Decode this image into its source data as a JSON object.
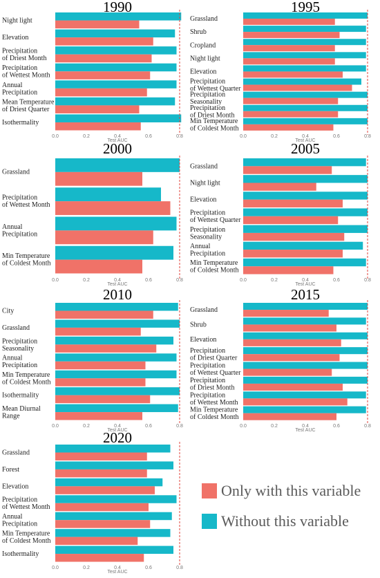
{
  "colors": {
    "only": "#F07268",
    "without": "#16B8C9",
    "ref_line": "#E0403A"
  },
  "legend": {
    "only_label": "Only with this variable",
    "without_label": "Without this variable"
  },
  "chart_data": [
    {
      "type": "bar",
      "orientation": "horizontal",
      "title": "1990",
      "xlabel": "Test AUC",
      "xlim": [
        0,
        0.8
      ],
      "ticks": [
        "0.0",
        "0.2",
        "0.4",
        "0.6",
        "0.8"
      ],
      "reference_line": 0.8,
      "categories": [
        "Night light",
        "Elevation",
        "Precipitation\nof Driest Month",
        "Precipitation\nof Wettest Month",
        "Annual\nPrecipitation",
        "Mean Temperature\nof Driest Quarter",
        "Isothermality"
      ],
      "series": [
        {
          "name": "Without this variable",
          "values": [
            0.81,
            0.77,
            0.78,
            0.78,
            0.78,
            0.77,
            0.81
          ]
        },
        {
          "name": "Only with this variable",
          "values": [
            0.54,
            0.63,
            0.62,
            0.61,
            0.59,
            0.54,
            0.55
          ]
        }
      ]
    },
    {
      "type": "bar",
      "orientation": "horizontal",
      "title": "1995",
      "xlabel": "Test AUC",
      "xlim": [
        0,
        0.8
      ],
      "ticks": [
        "0.0",
        "0.2",
        "0.4",
        "0.6",
        "0.8"
      ],
      "reference_line": 0.8,
      "categories": [
        "Grassland",
        "Shrub",
        "Cropland",
        "Night light",
        "Elevation",
        "Precipitation\nof Wettest Quarter",
        "Precipitation\nSeasonality",
        "Precipitation\nof Driest Month",
        "Min Temperature\nof Coldest Month"
      ],
      "series": [
        {
          "name": "Without this variable",
          "values": [
            0.8,
            0.79,
            0.79,
            0.79,
            0.79,
            0.76,
            0.8,
            0.8,
            0.8
          ]
        },
        {
          "name": "Only with this variable",
          "values": [
            0.59,
            0.62,
            0.59,
            0.59,
            0.64,
            0.7,
            0.61,
            0.61,
            0.58
          ]
        }
      ]
    },
    {
      "type": "bar",
      "orientation": "horizontal",
      "title": "2000",
      "xlabel": "Test AUC",
      "xlim": [
        0,
        0.8
      ],
      "ticks": [
        "0.0",
        "0.2",
        "0.4",
        "0.6",
        "0.8"
      ],
      "reference_line": 0.8,
      "categories": [
        "Grassland",
        "Precipitation\nof Wettest Month",
        "Annual\nPrecipitation",
        "Min Temperature\nof Coldest Month"
      ],
      "series": [
        {
          "name": "Without this variable",
          "values": [
            0.8,
            0.68,
            0.78,
            0.76
          ]
        },
        {
          "name": "Only with this variable",
          "values": [
            0.56,
            0.74,
            0.63,
            0.56
          ]
        }
      ]
    },
    {
      "type": "bar",
      "orientation": "horizontal",
      "title": "2005",
      "xlabel": "Test AUC",
      "xlim": [
        0,
        0.8
      ],
      "ticks": [
        "0.0",
        "0.2",
        "0.4",
        "0.6",
        "0.8"
      ],
      "reference_line": 0.8,
      "categories": [
        "Grassland",
        "Night light",
        "Elevation",
        "Precipitation\nof Wettest Quarter",
        "Precipitation\nSeasonality",
        "Annual\nPrecipitation",
        "Min Temperature\nof Coldest Month"
      ],
      "series": [
        {
          "name": "Without this variable",
          "values": [
            0.79,
            0.8,
            0.8,
            0.8,
            0.8,
            0.77,
            0.79
          ]
        },
        {
          "name": "Only with this variable",
          "values": [
            0.57,
            0.47,
            0.64,
            0.61,
            0.65,
            0.64,
            0.58
          ]
        }
      ]
    },
    {
      "type": "bar",
      "orientation": "horizontal",
      "title": "2010",
      "xlabel": "Test AUC",
      "xlim": [
        0,
        0.8
      ],
      "ticks": [
        "0.0",
        "0.2",
        "0.4",
        "0.6",
        "0.8"
      ],
      "reference_line": 0.8,
      "categories": [
        "City",
        "Grassland",
        "Precipitation\nSeasonality",
        "Annual\nPrecipitation",
        "Min Temperature\nof Coldest Month",
        "Isothermality",
        "Mean Diurnal\nRange"
      ],
      "series": [
        {
          "name": "Without this variable",
          "values": [
            0.79,
            0.8,
            0.76,
            0.78,
            0.78,
            0.8,
            0.79
          ]
        },
        {
          "name": "Only with this variable",
          "values": [
            0.63,
            0.55,
            0.65,
            0.58,
            0.58,
            0.61,
            0.56
          ]
        }
      ]
    },
    {
      "type": "bar",
      "orientation": "horizontal",
      "title": "2015",
      "xlabel": "Test AUC",
      "xlim": [
        0,
        0.8
      ],
      "ticks": [
        "0.0",
        "0.2",
        "0.4",
        "0.6",
        "0.8"
      ],
      "reference_line": 0.8,
      "categories": [
        "Grassland",
        "Shrub",
        "Elevation",
        "Precipitation\nof Driest Quarter",
        "Precipitation\nof Wettest Quarter",
        "Precipitation\nof Driest Month",
        "Precipitation\nof Wettest Month",
        "Min Temperature\nof Coldest Month"
      ],
      "series": [
        {
          "name": "Without this variable",
          "values": [
            0.8,
            0.79,
            0.8,
            0.8,
            0.8,
            0.8,
            0.79,
            0.79
          ]
        },
        {
          "name": "Only with this variable",
          "values": [
            0.55,
            0.6,
            0.63,
            0.62,
            0.57,
            0.64,
            0.67,
            0.6
          ]
        }
      ]
    },
    {
      "type": "bar",
      "orientation": "horizontal",
      "title": "2020",
      "xlabel": "Test AUC",
      "xlim": [
        0,
        0.8
      ],
      "ticks": [
        "0.0",
        "0.2",
        "0.4",
        "0.6",
        "0.8"
      ],
      "reference_line": 0.8,
      "categories": [
        "Grassland",
        "Forest",
        "Elevation",
        "Precipitation\nof Wettest Month",
        "Annual\nPrecipitation",
        "Min Temperature\nof Coldest Month",
        "Isothermality"
      ],
      "series": [
        {
          "name": "Without this variable",
          "values": [
            0.74,
            0.76,
            0.69,
            0.78,
            0.75,
            0.74,
            0.76
          ]
        },
        {
          "name": "Only with this variable",
          "values": [
            0.59,
            0.59,
            0.64,
            0.6,
            0.61,
            0.53,
            0.57
          ]
        }
      ]
    }
  ]
}
